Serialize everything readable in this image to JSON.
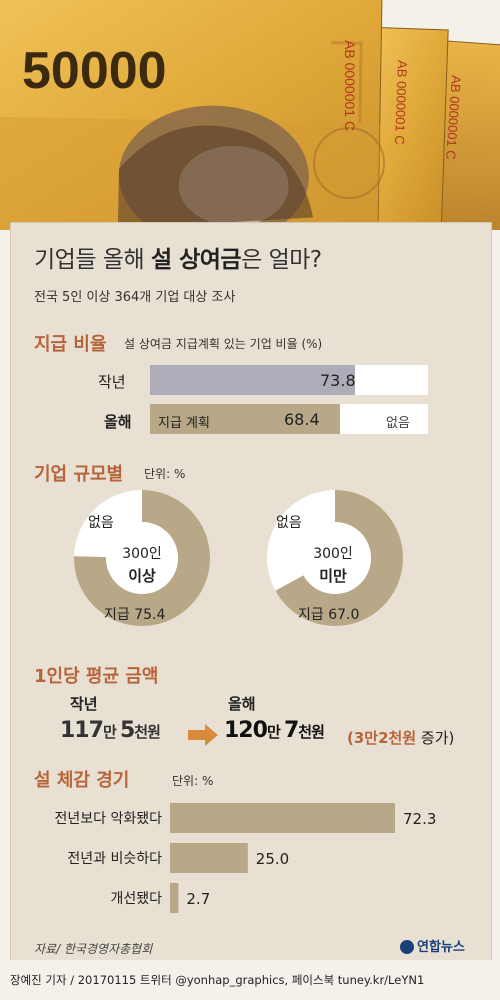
{
  "header": {
    "title_prefix": "기업들 올해 ",
    "title_bold": "설 상여금",
    "title_suffix": "은 얼마?",
    "subtitle": "전국 5인 이상 364개 기업 대상 조사",
    "banknote_value": "50000",
    "serial": "AB 0000001 C"
  },
  "section_ratio": {
    "heading": "지급 비율",
    "desc": "설 상여금 지급계획 있는 기업 비율 (%)",
    "rows": [
      {
        "label": "작년",
        "value": 73.8,
        "value_text": "73.8",
        "inner_label": "",
        "rest_label": ""
      },
      {
        "label": "올해",
        "value": 68.4,
        "value_text": "68.4",
        "inner_label": "지급 계획",
        "rest_label": "없음"
      }
    ]
  },
  "section_size": {
    "heading": "기업 규모별",
    "unit": "단위: %",
    "donuts": [
      {
        "top": "300인",
        "bottom": "이상",
        "paid_label": "지급 75.4",
        "paid": 75.4,
        "none_label": "없음"
      },
      {
        "top": "300인",
        "bottom": "미만",
        "paid_label": "지급 67.0",
        "paid": 67.0,
        "none_label": "없음"
      }
    ]
  },
  "section_avg": {
    "heading": "1인당 평균 금액",
    "last_year_label": "작년",
    "this_year_label": "올해",
    "last_a": "117",
    "last_a_unit": "만 ",
    "last_b": "5",
    "last_b_unit": "천원",
    "now_a": "120",
    "now_a_unit": "만 ",
    "now_b": "7",
    "now_b_unit": "천원",
    "increase_amount": "(3만2천원",
    "increase_suffix": " 증가)"
  },
  "chart_data": {
    "type": "bar",
    "title": "설 체감 경기",
    "unit": "단위: %",
    "categories": [
      "전년보다 악화됐다",
      "전년과 비슷하다",
      "개선됐다"
    ],
    "values": [
      72.3,
      25.0,
      2.7
    ],
    "value_labels": [
      "72.3",
      "25.0",
      "2.7"
    ]
  },
  "source": "자료/ 한국경영자총협회",
  "logo": "연합뉴스",
  "byline": "장예진 기자 / 20170115 트위터 @yonhap_graphics, 페이스북 tuney.kr/LeYN1",
  "colors": {
    "bar_last_year": "#aeacb8",
    "bar_this_year": "#b8a887",
    "accent": "#b7643a",
    "donut_paid": "#b8a887",
    "arrow": "#d98a3a"
  }
}
